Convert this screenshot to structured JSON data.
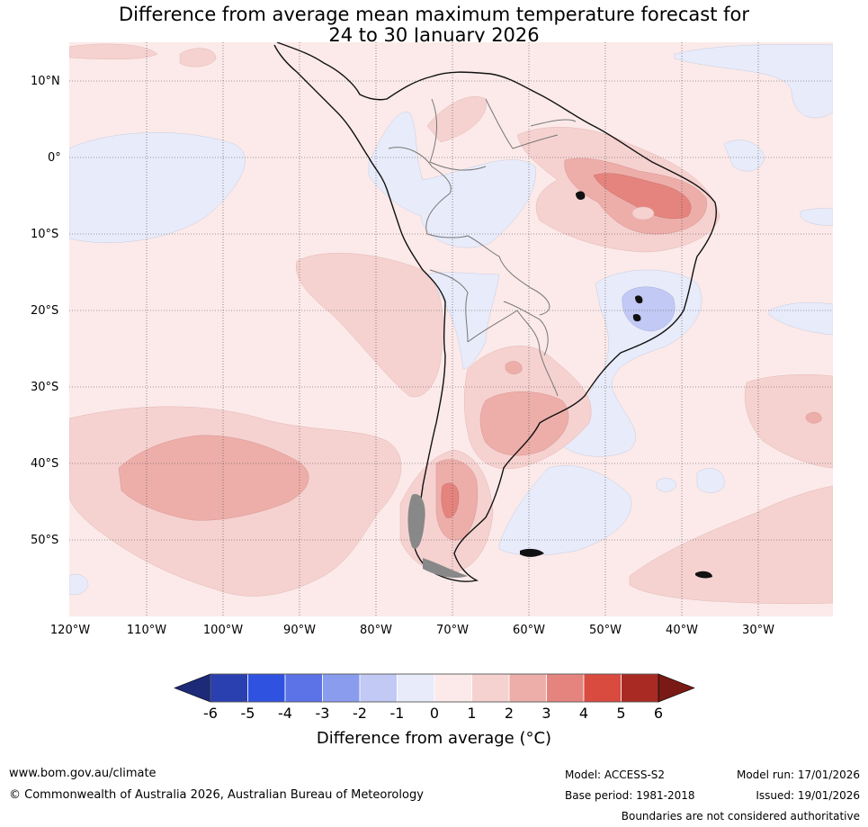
{
  "title_line1": "Difference from average mean maximum temperature forecast for",
  "title_line2": "24 to 30 January 2026",
  "lat_labels": [
    "10°N",
    "0°",
    "10°S",
    "20°S",
    "30°S",
    "40°S",
    "50°S"
  ],
  "lon_labels": [
    "120°W",
    "110°W",
    "100°W",
    "90°W",
    "80°W",
    "70°W",
    "60°W",
    "50°W",
    "40°W",
    "30°W"
  ],
  "colorbar": {
    "ticks": [
      "-6",
      "-5",
      "-4",
      "-3",
      "-2",
      "-1",
      "0",
      "1",
      "2",
      "3",
      "4",
      "5",
      "6"
    ],
    "colors": [
      "#2a3fb0",
      "#2f52e0",
      "#5b73e6",
      "#8a9cee",
      "#c1c9f4",
      "#e8ebfa",
      "#fbeae9",
      "#f5d2d0",
      "#edaeaa",
      "#e5847e",
      "#d94a3f",
      "#a82a22"
    ],
    "under_color": "#1c2a78",
    "over_color": "#7a1a15",
    "label": "Difference from average (°C)"
  },
  "footer": {
    "url": "www.bom.gov.au/climate",
    "copyright": "© Commonwealth of Australia 2026, Australian Bureau of Meteorology",
    "model": "Model: ACCESS-S2",
    "base_period": "Base period: 1981-2018",
    "model_run": "Model run: 17/01/2026",
    "issued": "Issued: 19/01/2026",
    "disclaimer": "Boundaries are not considered authoritative"
  }
}
